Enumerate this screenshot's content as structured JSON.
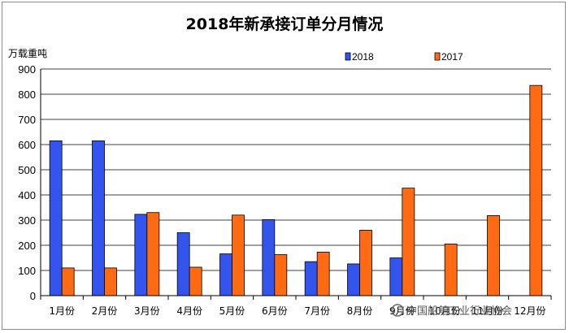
{
  "chart_data": {
    "type": "bar",
    "title": "2018年新承接订单分月情况",
    "ylabel": "万载重吨",
    "xlabel": "",
    "categories": [
      "1月份",
      "2月份",
      "3月份",
      "4月份",
      "5月份",
      "6月份",
      "7月份",
      "8月份",
      "9月份",
      "10月份",
      "11月份",
      "12月份"
    ],
    "series": [
      {
        "name": "2018",
        "color": "#3355ee",
        "values": [
          615,
          615,
          323,
          250,
          166,
          302,
          135,
          126,
          150,
          null,
          null,
          null
        ]
      },
      {
        "name": "2017",
        "color": "#ff6a13",
        "values": [
          110,
          110,
          330,
          113,
          320,
          163,
          173,
          260,
          427,
          205,
          318,
          835
        ]
      }
    ],
    "ylim": [
      0,
      900
    ],
    "yticks": [
      0,
      100,
      200,
      300,
      400,
      500,
      600,
      700,
      800,
      900
    ],
    "grid": true,
    "legend": "top-center"
  },
  "watermark": "中国船舶工业行业协会"
}
